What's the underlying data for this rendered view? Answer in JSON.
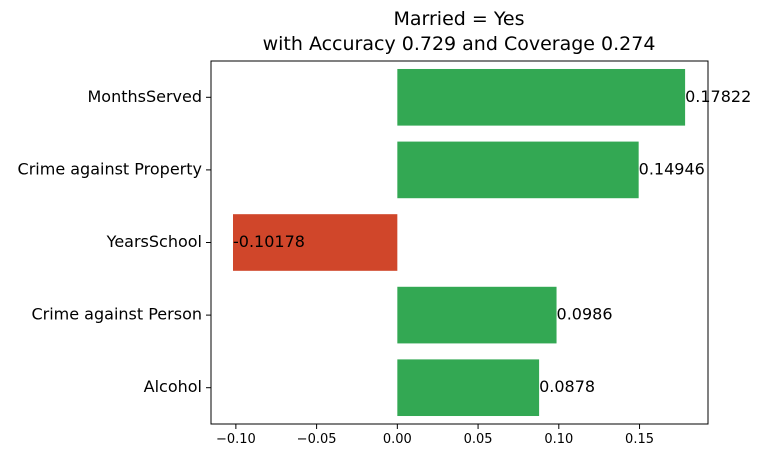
{
  "chart_data": {
    "type": "bar",
    "orientation": "horizontal",
    "title_line1": "Married = Yes",
    "title_line2": "with Accuracy 0.729 and Coverage 0.274",
    "categories": [
      "MonthsServed",
      "Crime against Property",
      "YearsSchool",
      "Crime against Person",
      "Alcohol"
    ],
    "values": [
      0.17822,
      0.14946,
      -0.10178,
      0.0986,
      0.0878
    ],
    "value_labels": [
      "0.17822",
      "0.14946",
      "-0.10178",
      "0.0986",
      "0.0878"
    ],
    "xticks": [
      -0.1,
      -0.05,
      0.0,
      0.05,
      0.1,
      0.15
    ],
    "xtick_labels": [
      "−0.10",
      "−0.05",
      "0.00",
      "0.05",
      "0.10",
      "0.15"
    ],
    "xlim": [
      -0.1154,
      0.1924
    ],
    "xlabel": "",
    "ylabel": "",
    "grid": false,
    "colors": {
      "positive": "#33a853",
      "negative": "#d0462a"
    }
  }
}
